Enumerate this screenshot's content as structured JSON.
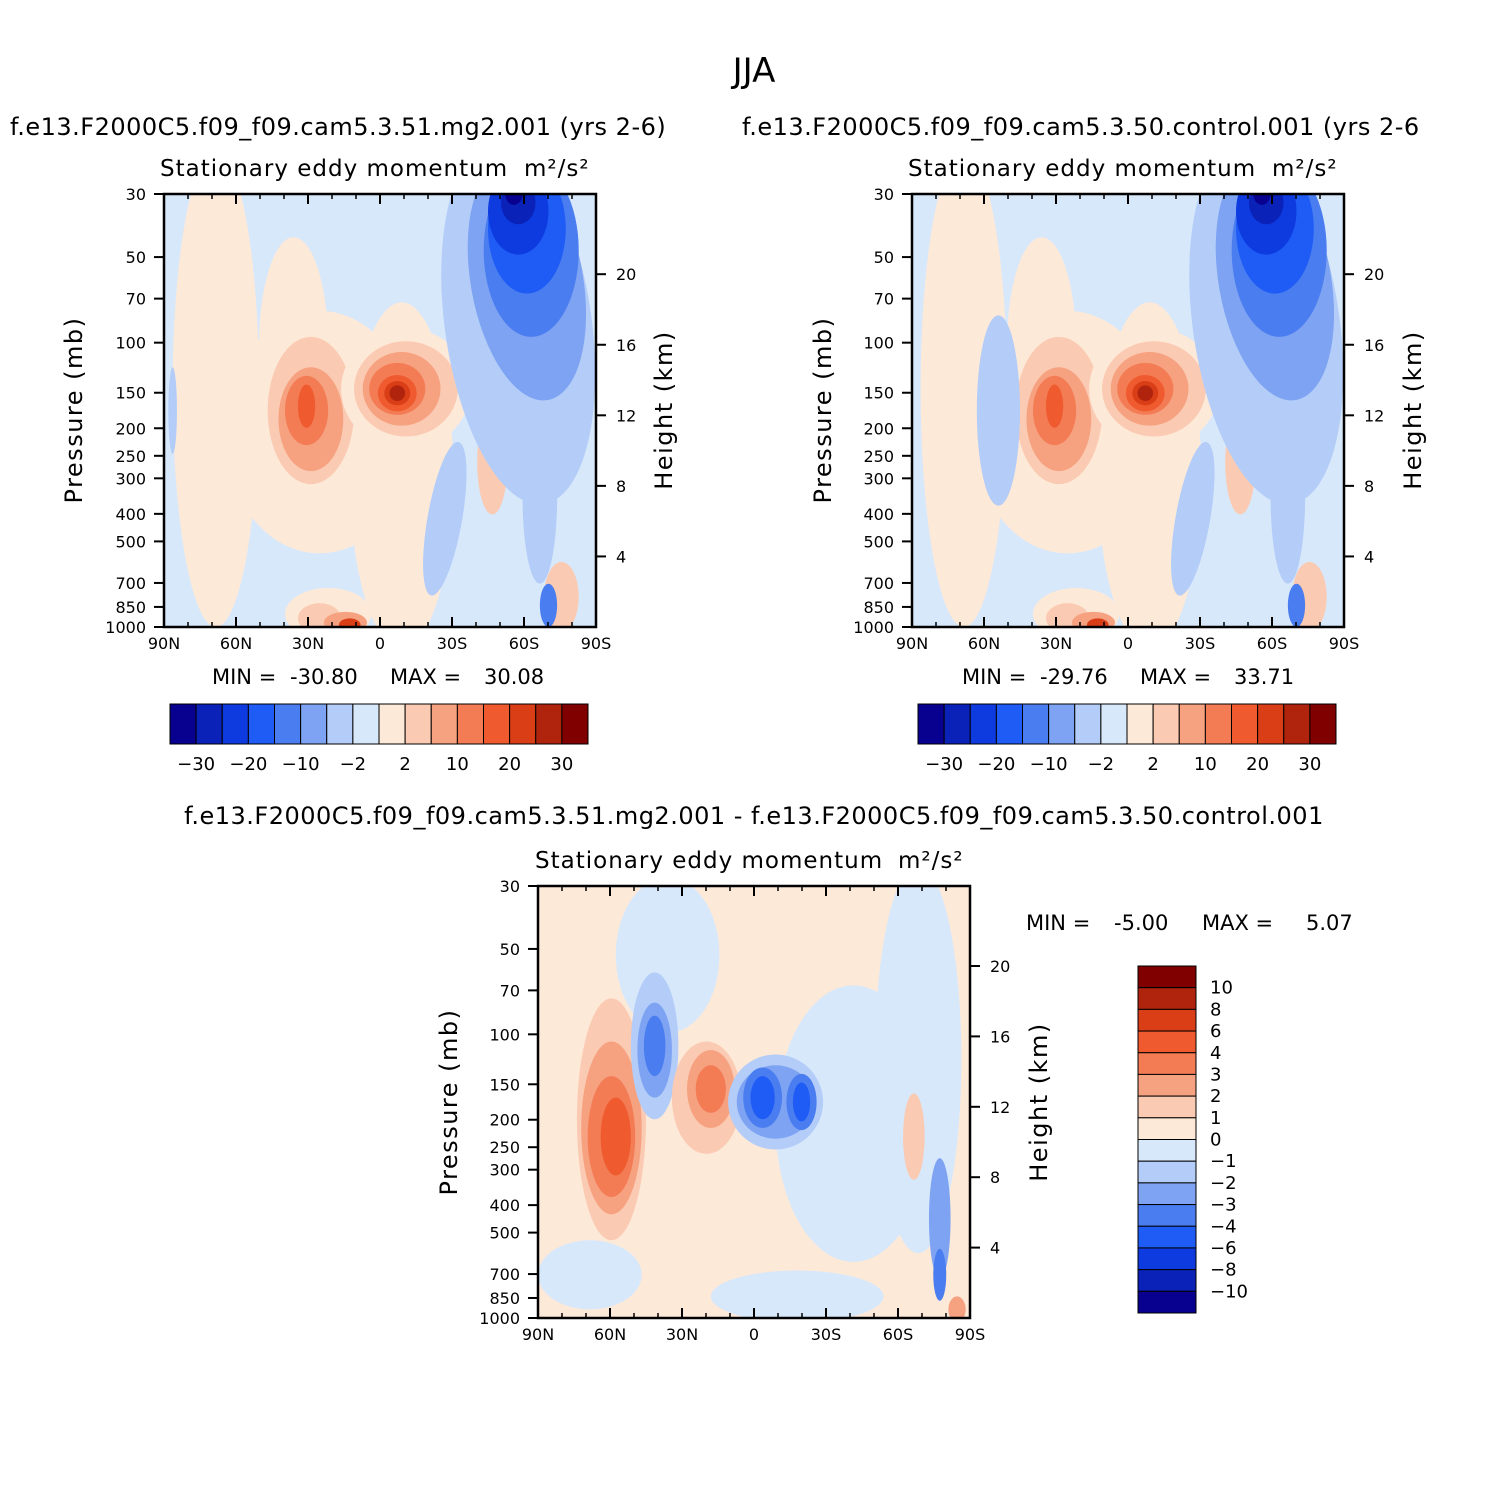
{
  "title": "JJA",
  "panels": [
    {
      "case_title": "f.e13.F2000C5.f09_f09.cam5.3.51.mg2.001  (yrs  2-6)",
      "subtitle": "Stationary  eddy  momentum",
      "units": "m²/s²",
      "ylabel": "Pressure  (mb)",
      "y2label": "Height  (km)",
      "stats": {
        "min_label": "MIN  =",
        "min": "-30.80",
        "max_label": "MAX  =",
        "max": "30.08"
      }
    },
    {
      "case_title": "f.e13.F2000C5.f09_f09.cam5.3.50.control.001  (yrs  2-6",
      "subtitle": "Stationary  eddy  momentum",
      "units": "m²/s²",
      "ylabel": "Pressure  (mb)",
      "y2label": "Height  (km)",
      "stats": {
        "min_label": "MIN  =",
        "min": "-29.76",
        "max_label": "MAX  =",
        "max": "33.71"
      }
    },
    {
      "case_title": "f.e13.F2000C5.f09_f09.cam5.3.51.mg2.001  -  f.e13.F2000C5.f09_f09.cam5.3.50.control.001",
      "subtitle": "Stationary  eddy  momentum",
      "units": "m²/s²",
      "ylabel": "Pressure  (mb)",
      "y2label": "Height  (km)",
      "stats": {
        "min_label": "MIN  =",
        "min": "-5.00",
        "max_label": "MAX  =",
        "max": "5.07"
      }
    }
  ],
  "chart_data": {
    "type": "heatmap",
    "x_ticks": [
      "90N",
      "60N",
      "30N",
      "0",
      "30S",
      "60S",
      "90S"
    ],
    "pressure_ticks": [
      30,
      50,
      70,
      100,
      150,
      200,
      250,
      300,
      400,
      500,
      700,
      850,
      1000
    ],
    "height_ticks": [
      4,
      8,
      12,
      16,
      20
    ],
    "colorbar_main": {
      "labels": [
        "-30",
        "-20",
        "-10",
        "-2",
        "2",
        "10",
        "20",
        "30"
      ],
      "colors": [
        "#08008f",
        "#0a22b8",
        "#0d3be0",
        "#1e5cf5",
        "#4a7df0",
        "#7ea3f2",
        "#b3cdf8",
        "#d8e8fb",
        "#fde9d8",
        "#fbcab2",
        "#f6a180",
        "#f37c55",
        "#ef5a2e",
        "#d93e17",
        "#b0240e",
        "#800000"
      ]
    },
    "colorbar_diff": {
      "labels": [
        "10",
        "8",
        "6",
        "4",
        "3",
        "2",
        "1",
        "0",
        "-1",
        "-2",
        "-3",
        "-4",
        "-6",
        "-8",
        "-10"
      ],
      "colors": [
        "#800000",
        "#b0240e",
        "#d93e17",
        "#ef5a2e",
        "#f37c55",
        "#f6a180",
        "#fbcab2",
        "#fde9d8",
        "#d8e8fb",
        "#b3cdf8",
        "#7ea3f2",
        "#4a7df0",
        "#1e5cf5",
        "#0d3be0",
        "#0a22b8",
        "#08008f"
      ]
    }
  }
}
